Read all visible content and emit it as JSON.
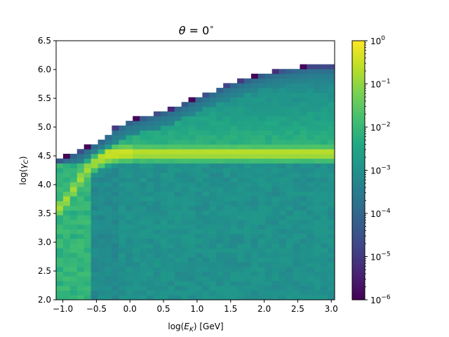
{
  "chart_data": {
    "type": "heatmap",
    "title": "θ = 0°",
    "title_parts": {
      "symbol": "θ",
      "equals": " = 0",
      "degree": "∘"
    },
    "xlabel": "log(E_K) [GeV]",
    "xlabel_parts": {
      "pre": "log(",
      "var": "E",
      "sub": "K",
      "post": ") [GeV]"
    },
    "ylabel": "log(γ_C)",
    "ylabel_parts": {
      "pre": "log(",
      "var": "γ",
      "sub": "C",
      "post": ")"
    },
    "xlim": [
      -1.1,
      3.05
    ],
    "ylim": [
      2.0,
      6.5
    ],
    "x_ticks": [
      {
        "value": -1.0,
        "label": "−1.0"
      },
      {
        "value": -0.5,
        "label": "−0.5"
      },
      {
        "value": 0.0,
        "label": "0.0"
      },
      {
        "value": 0.5,
        "label": "0.5"
      },
      {
        "value": 1.0,
        "label": "1.0"
      },
      {
        "value": 1.5,
        "label": "1.5"
      },
      {
        "value": 2.0,
        "label": "2.0"
      },
      {
        "value": 2.5,
        "label": "2.5"
      },
      {
        "value": 3.0,
        "label": "3.0"
      }
    ],
    "y_ticks": [
      {
        "value": 2.0,
        "label": "2.0"
      },
      {
        "value": 2.5,
        "label": "2.5"
      },
      {
        "value": 3.0,
        "label": "3.0"
      },
      {
        "value": 3.5,
        "label": "3.5"
      },
      {
        "value": 4.0,
        "label": "4.0"
      },
      {
        "value": 4.5,
        "label": "4.5"
      },
      {
        "value": 5.0,
        "label": "5.0"
      },
      {
        "value": 5.5,
        "label": "5.5"
      },
      {
        "value": 6.0,
        "label": "6.0"
      },
      {
        "value": 6.5,
        "label": "6.5"
      }
    ],
    "colorbar": {
      "colormap": "viridis",
      "scale": "log",
      "range": [
        1e-06,
        1
      ],
      "ticks": [
        {
          "value": 1.0,
          "base": "10",
          "exp": "0"
        },
        {
          "value": 0.1,
          "base": "10",
          "exp": "−1"
        },
        {
          "value": 0.01,
          "base": "10",
          "exp": "−2"
        },
        {
          "value": 0.001,
          "base": "10",
          "exp": "−3"
        },
        {
          "value": 0.0001,
          "base": "10",
          "exp": "−4"
        },
        {
          "value": 1e-05,
          "base": "10",
          "exp": "−5"
        },
        {
          "value": 1e-06,
          "base": "10",
          "exp": "−6"
        }
      ]
    },
    "grid": false,
    "bins": {
      "nx": 40,
      "ny": 55,
      "x_range": [
        -1.1,
        3.05
      ],
      "y_range": [
        2.0,
        6.5
      ]
    },
    "distribution": {
      "ridge_y": 4.55,
      "ridge_peak": 0.25,
      "band_y": [
        4.35,
        5.3
      ],
      "band_level": 0.01,
      "lower_level": 0.001,
      "upper_edge": [
        [
          -1.1,
          4.4
        ],
        [
          -0.7,
          4.6
        ],
        [
          -0.4,
          4.8
        ],
        [
          -0.2,
          5.0
        ],
        [
          0.0,
          5.1
        ],
        [
          0.3,
          5.2
        ],
        [
          0.6,
          5.3
        ],
        [
          0.9,
          5.45
        ],
        [
          1.2,
          5.6
        ],
        [
          1.5,
          5.75
        ],
        [
          1.8,
          5.85
        ],
        [
          2.1,
          5.95
        ],
        [
          2.4,
          6.0
        ],
        [
          2.7,
          6.05
        ],
        [
          3.05,
          6.05
        ]
      ],
      "low_energy_branch": [
        [
          -1.05,
          3.6
        ],
        [
          -0.9,
          3.8
        ],
        [
          -0.8,
          4.0
        ],
        [
          -0.65,
          4.25
        ],
        [
          -0.5,
          4.4
        ],
        [
          -0.3,
          4.5
        ],
        [
          -0.1,
          4.55
        ]
      ],
      "low_energy_strip": {
        "x": [
          -1.1,
          -0.6
        ],
        "level": 0.01
      }
    }
  }
}
